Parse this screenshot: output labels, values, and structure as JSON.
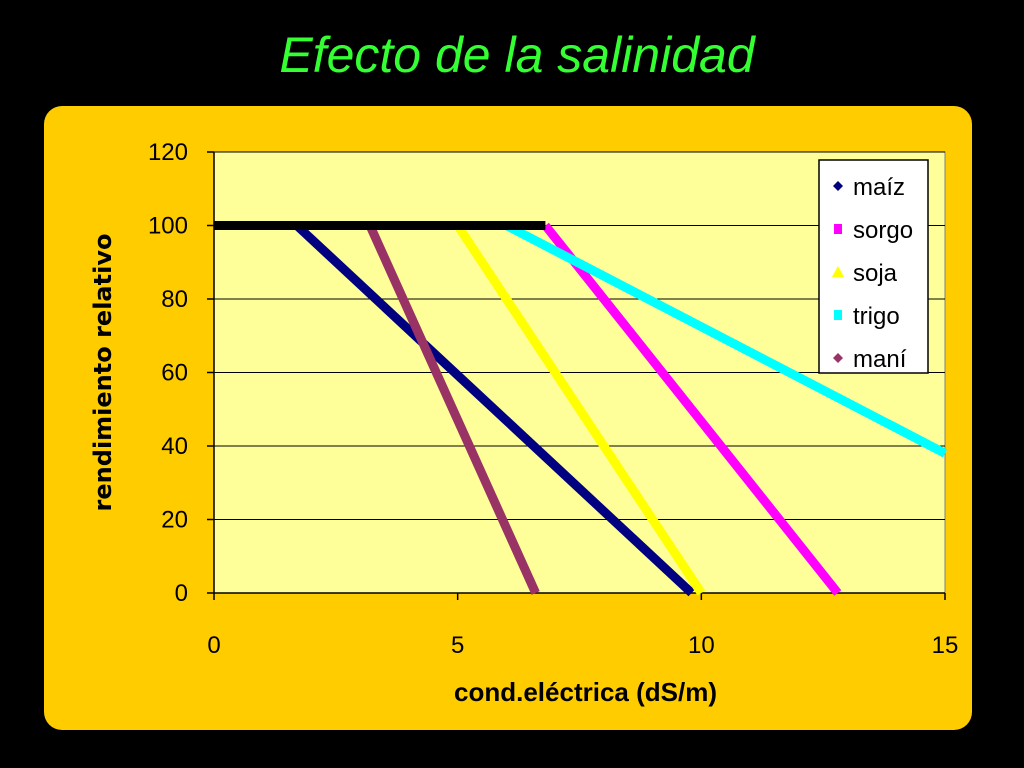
{
  "slide": {
    "title": "Efecto de la salinidad"
  },
  "colors": {
    "background": "#000000",
    "panel": "#ffcc00",
    "plot_area": "#ffff99",
    "title": "#33ff33",
    "flat_line": "#000000"
  },
  "chart_data": {
    "type": "line",
    "title": "",
    "xlabel": "cond.eléctrica (dS/m)",
    "ylabel": "rendimiento relativo",
    "xlim": [
      0,
      15
    ],
    "ylim": [
      0,
      120
    ],
    "xticks": [
      0,
      5,
      10,
      15
    ],
    "yticks": [
      0,
      20,
      40,
      60,
      80,
      100,
      120
    ],
    "grid": "horizontal",
    "legend_position": "top-right",
    "baseline": {
      "x": [
        0,
        6.8
      ],
      "y": [
        100,
        100
      ]
    },
    "series": [
      {
        "name": "maíz",
        "color": "#000080",
        "marker": "diamond",
        "x": [
          1.7,
          9.8
        ],
        "y": [
          100,
          0
        ]
      },
      {
        "name": "sorgo",
        "color": "#ff00ff",
        "marker": "square",
        "x": [
          6.8,
          12.8
        ],
        "y": [
          100,
          0
        ]
      },
      {
        "name": "soja",
        "color": "#ffff00",
        "marker": "triangle",
        "x": [
          5.0,
          10.0
        ],
        "y": [
          100,
          0
        ]
      },
      {
        "name": "trigo",
        "color": "#00ffff",
        "marker": "square",
        "x": [
          6.0,
          15.0
        ],
        "y": [
          100,
          38
        ]
      },
      {
        "name": "maní",
        "color": "#993366",
        "marker": "diamond",
        "x": [
          3.2,
          6.6
        ],
        "y": [
          100,
          0
        ]
      }
    ]
  }
}
